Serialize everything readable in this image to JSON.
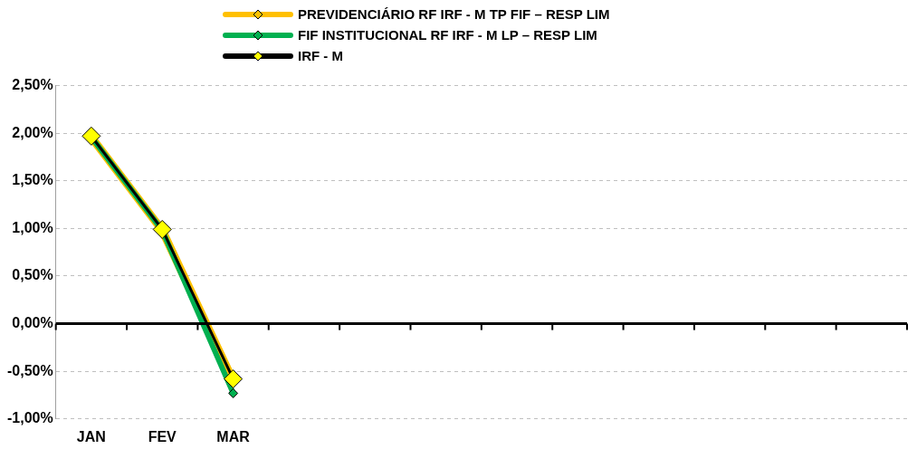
{
  "chart_data": {
    "type": "line",
    "categories": [
      "JAN",
      "FEV",
      "MAR",
      null,
      null,
      null,
      null,
      null,
      null,
      null,
      null,
      null
    ],
    "series": [
      {
        "name": "PREVIDENCIÁRIO RF IRF - M TP FIF – RESP LIM",
        "color": "#ffc000",
        "values": [
          1.96,
          0.98,
          -0.6,
          null,
          null,
          null,
          null,
          null,
          null,
          null,
          null,
          null
        ]
      },
      {
        "name": "FIF INSTITUCIONAL RF IRF - M LP – RESP LIM",
        "color": "#00b050",
        "values": [
          1.96,
          0.98,
          -0.73,
          null,
          null,
          null,
          null,
          null,
          null,
          null,
          null,
          null
        ]
      },
      {
        "name": "IRF - M",
        "color": "#000000",
        "values": [
          1.97,
          0.99,
          -0.58,
          null,
          null,
          null,
          null,
          null,
          null,
          null,
          null,
          null
        ]
      }
    ],
    "ylim": [
      -1,
      2.5
    ],
    "yticks": [
      {
        "value": -1,
        "label": "-1,00%"
      },
      {
        "value": -0.5,
        "label": "-0,50%"
      },
      {
        "value": 0,
        "label": "0,00%"
      },
      {
        "value": 0.5,
        "label": "0,50%"
      },
      {
        "value": 1,
        "label": "1,00%"
      },
      {
        "value": 1.5,
        "label": "1,50%"
      },
      {
        "value": 2,
        "label": "2,00%"
      },
      {
        "value": 2.5,
        "label": "2,50%"
      }
    ],
    "grid": "y",
    "legend": "top",
    "marker": "diamond",
    "line_style": "solid"
  }
}
